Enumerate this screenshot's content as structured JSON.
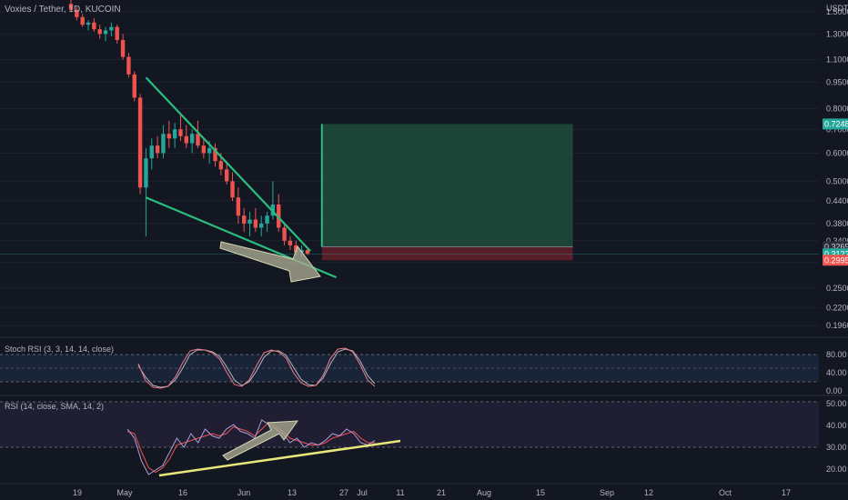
{
  "header": {
    "symbol_line": "Voxies / Tether, 1D, KUCOIN",
    "currency": "USDT"
  },
  "price_axis": {
    "ticks": [
      "1.5000",
      "1.3000",
      "1.1000",
      "0.9500",
      "0.8000",
      "0.7000",
      "0.6000",
      "0.5000",
      "0.4400",
      "0.3800",
      "0.3400",
      "0.2950",
      "0.2500",
      "0.2200",
      "0.1960"
    ],
    "tags": [
      {
        "value": "0.7248",
        "bg": "#26a69a",
        "fg": "#ffffff"
      },
      {
        "value": "0.3269",
        "bg": "#2a2e39",
        "fg": "#d1d4dc"
      },
      {
        "value": "0.3122",
        "bg": "#26a69a",
        "fg": "#ffffff"
      },
      {
        "value": "0.2995",
        "bg": "#ef5350",
        "fg": "#ffffff"
      }
    ]
  },
  "time_axis": {
    "ticks": [
      "19",
      "May",
      "16",
      "Jun",
      "13",
      "27",
      "Jul",
      "11",
      "21",
      "Aug",
      "15",
      "Sep",
      "12",
      "Oct",
      "17"
    ]
  },
  "stoch_rsi": {
    "label": "Stoch RSI (3, 3, 14, 14, close)",
    "ticks": [
      "80.00",
      "40.00",
      "0.00"
    ]
  },
  "rsi": {
    "label": "RSI (14, close, SMA, 14, 2)",
    "ticks": [
      "50.00",
      "40.00",
      "30.00",
      "20.00"
    ]
  },
  "colors": {
    "background": "#131722",
    "up": "#26a69a",
    "down": "#ef5350",
    "wedge": "#2bbd7e",
    "target_zone": "#1e4a3a",
    "stop_zone": "#5c1f2b",
    "k_line": "#ef7a8a",
    "d_line": "#b2b5be",
    "rsi_sma": "#ef5350",
    "trendline": "#e8e87a",
    "arrow": "#bfbfa0"
  },
  "chart_data": {
    "type": "candlestick",
    "title": "Voxies / Tether, 1D, KUCOIN",
    "ylabel": "USDT",
    "y_scale": "log",
    "ylim": [
      0.185,
      1.62
    ],
    "x": [
      "Apr 14",
      "Apr 16",
      "Apr 18",
      "Apr 20",
      "Apr 22",
      "Apr 24",
      "Apr 26",
      "Apr 28",
      "Apr 30",
      "May 2",
      "May 4",
      "May 6",
      "May 8",
      "May 10",
      "May 12",
      "May 14",
      "May 16",
      "May 18",
      "May 20",
      "May 22",
      "May 24",
      "May 26",
      "May 28",
      "May 30",
      "Jun 1",
      "Jun 3",
      "Jun 5",
      "Jun 7",
      "Jun 9",
      "Jun 11",
      "Jun 13",
      "Jun 15",
      "Jun 17",
      "Jun 19",
      "Jun 21",
      "Jun 23",
      "Jun 25",
      "Jun 27",
      "Jun 29",
      "Jul 1",
      "Jul 3",
      "Jul 5"
    ],
    "ohlc": [
      [
        1.58,
        1.62,
        1.5,
        1.52
      ],
      [
        1.52,
        1.55,
        1.42,
        1.45
      ],
      [
        1.45,
        1.48,
        1.36,
        1.38
      ],
      [
        1.38,
        1.42,
        1.33,
        1.4
      ],
      [
        1.4,
        1.44,
        1.32,
        1.34
      ],
      [
        1.34,
        1.38,
        1.26,
        1.3
      ],
      [
        1.3,
        1.36,
        1.24,
        1.33
      ],
      [
        1.33,
        1.4,
        1.28,
        1.36
      ],
      [
        1.36,
        1.38,
        1.22,
        1.25
      ],
      [
        1.25,
        1.3,
        1.1,
        1.12
      ],
      [
        1.12,
        1.15,
        0.98,
        1.0
      ],
      [
        1.0,
        1.02,
        0.84,
        0.86
      ],
      [
        0.86,
        0.88,
        0.46,
        0.48
      ],
      [
        0.48,
        0.62,
        0.35,
        0.58
      ],
      [
        0.58,
        0.66,
        0.54,
        0.63
      ],
      [
        0.63,
        0.67,
        0.58,
        0.6
      ],
      [
        0.6,
        0.72,
        0.58,
        0.68
      ],
      [
        0.68,
        0.74,
        0.62,
        0.66
      ],
      [
        0.66,
        0.73,
        0.62,
        0.7
      ],
      [
        0.7,
        0.78,
        0.65,
        0.67
      ],
      [
        0.67,
        0.72,
        0.62,
        0.64
      ],
      [
        0.64,
        0.7,
        0.6,
        0.68
      ],
      [
        0.68,
        0.74,
        0.62,
        0.63
      ],
      [
        0.63,
        0.66,
        0.58,
        0.6
      ],
      [
        0.6,
        0.65,
        0.56,
        0.62
      ],
      [
        0.62,
        0.64,
        0.55,
        0.57
      ],
      [
        0.57,
        0.6,
        0.52,
        0.54
      ],
      [
        0.54,
        0.57,
        0.49,
        0.5
      ],
      [
        0.5,
        0.53,
        0.44,
        0.45
      ],
      [
        0.45,
        0.48,
        0.38,
        0.4
      ],
      [
        0.4,
        0.42,
        0.36,
        0.38
      ],
      [
        0.38,
        0.41,
        0.35,
        0.39
      ],
      [
        0.39,
        0.42,
        0.36,
        0.37
      ],
      [
        0.37,
        0.4,
        0.35,
        0.38
      ],
      [
        0.38,
        0.41,
        0.36,
        0.4
      ],
      [
        0.4,
        0.5,
        0.39,
        0.43
      ],
      [
        0.43,
        0.46,
        0.36,
        0.37
      ],
      [
        0.37,
        0.38,
        0.33,
        0.34
      ],
      [
        0.34,
        0.35,
        0.32,
        0.33
      ],
      [
        0.33,
        0.34,
        0.31,
        0.315
      ],
      [
        0.315,
        0.33,
        0.305,
        0.32
      ],
      [
        0.32,
        0.325,
        0.31,
        0.3122
      ]
    ],
    "drawings": {
      "wedge_upper": [
        [
          "May 10",
          0.98
        ],
        [
          "Jul 6",
          0.318
        ]
      ],
      "wedge_lower": [
        [
          "May 10",
          0.45
        ],
        [
          "Jul 15",
          0.268
        ]
      ],
      "long_position": {
        "entry": 0.3269,
        "target": 0.7248,
        "stop": 0.2995,
        "start": "Jul 10",
        "end": "Oct 5"
      }
    },
    "stoch_rsi": {
      "type": "line",
      "ylim": [
        0,
        100
      ],
      "bands": [
        20,
        80
      ],
      "k": [
        60,
        22,
        8,
        6,
        10,
        30,
        62,
        88,
        92,
        90,
        84,
        70,
        40,
        14,
        10,
        24,
        56,
        84,
        90,
        86,
        72,
        40,
        18,
        10,
        12,
        34,
        72,
        92,
        94,
        86,
        58,
        24,
        10
      ],
      "d": [
        56,
        30,
        12,
        8,
        10,
        24,
        50,
        80,
        90,
        90,
        86,
        76,
        52,
        24,
        12,
        20,
        44,
        74,
        88,
        88,
        78,
        52,
        26,
        14,
        12,
        28,
        60,
        86,
        92,
        88,
        66,
        34,
        16
      ]
    },
    "rsi": {
      "type": "line",
      "ylim": [
        15,
        52
      ],
      "bands": [
        30,
        50
      ],
      "rsi": [
        38,
        34,
        24,
        18,
        20,
        22,
        28,
        34,
        30,
        36,
        32,
        38,
        35,
        34,
        38,
        40,
        37,
        36,
        34,
        42,
        40,
        38,
        36,
        32,
        34,
        30,
        32,
        31,
        33,
        36,
        35,
        38,
        36,
        32,
        31,
        33
      ],
      "sma": [
        37,
        36,
        28,
        21,
        19,
        21,
        25,
        31,
        32,
        33,
        34,
        35,
        36,
        35,
        36,
        39,
        38,
        37,
        35,
        38,
        41,
        39,
        37,
        34,
        33,
        32,
        31,
        31,
        32,
        34,
        35,
        36,
        37,
        34,
        32,
        32
      ]
    }
  }
}
